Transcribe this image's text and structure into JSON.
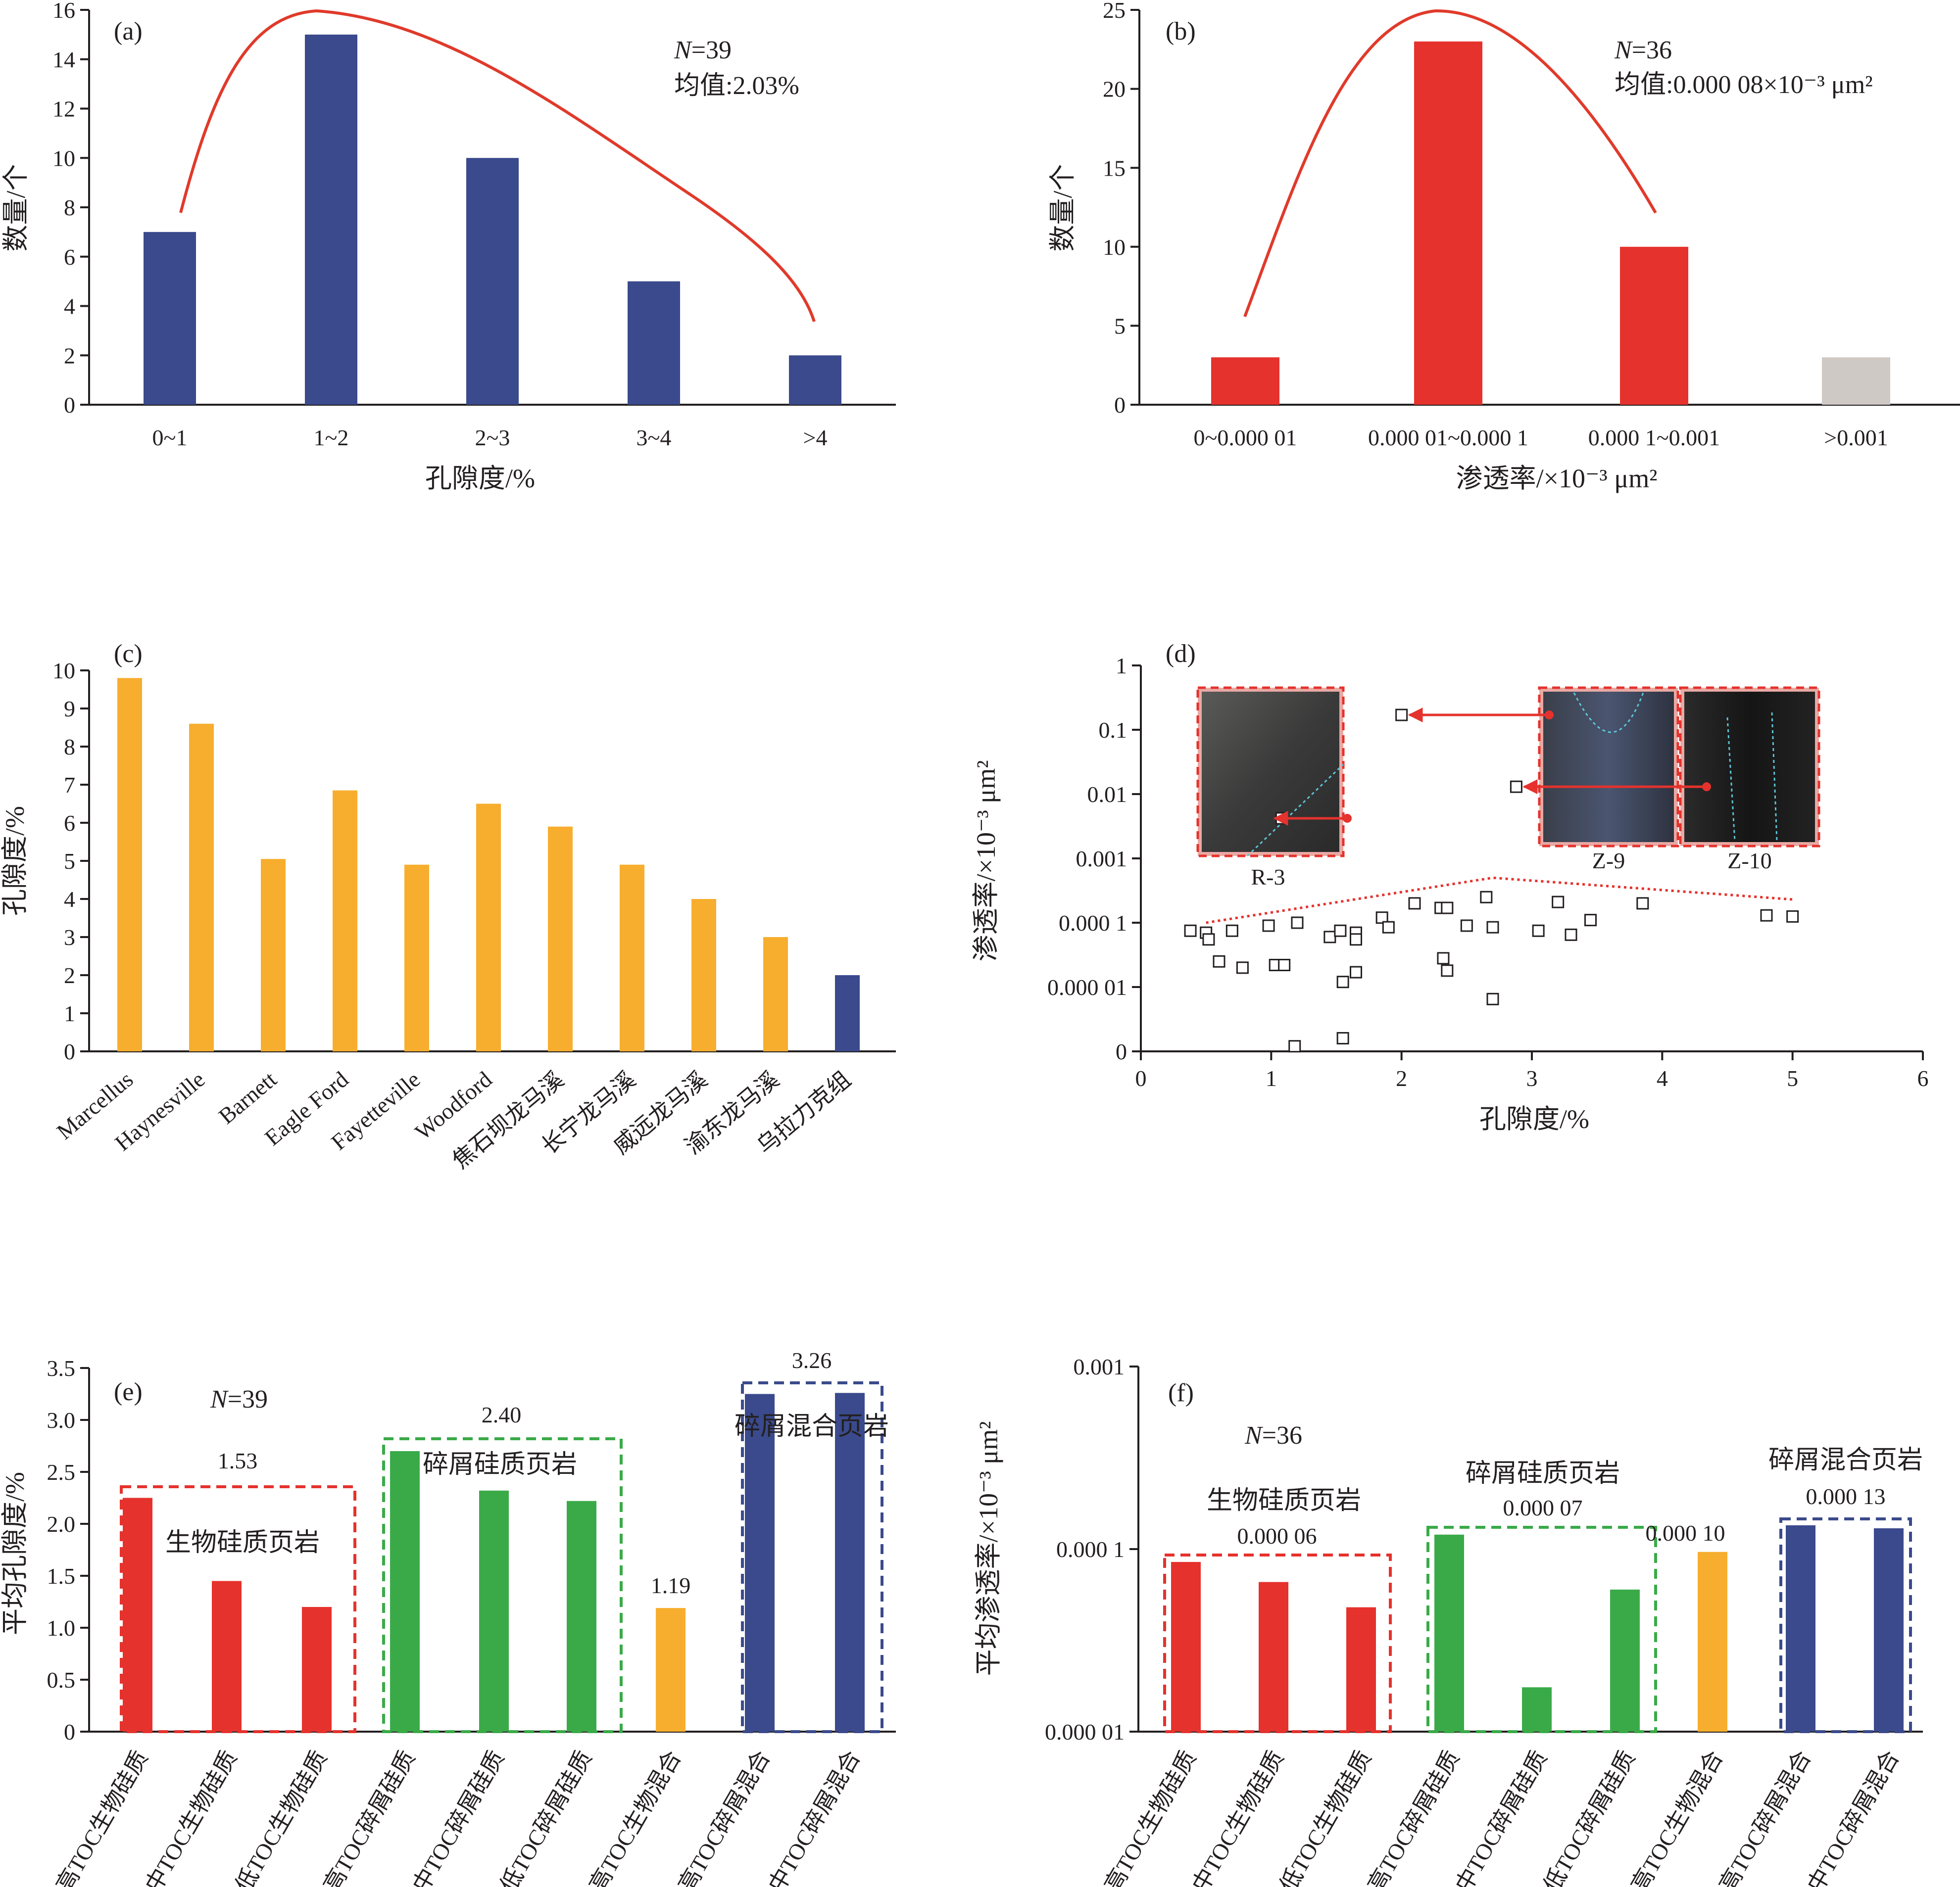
{
  "colors": {
    "navy": "#3a4a8c",
    "red": "#e5322d",
    "green": "#3aaa48",
    "orange": "#f7ae2e",
    "grey": "#cfc9c6",
    "curve": "#e03a2b",
    "ink": "#231f20"
  },
  "chart_data": [
    {
      "panel": "(a)",
      "type": "bar",
      "categories": [
        "0~1",
        "1~2",
        "2~3",
        "3~4",
        ">4"
      ],
      "values": [
        7,
        15,
        10,
        5,
        2
      ],
      "bar_colors": [
        "#3a4a8c",
        "#3a4a8c",
        "#3a4a8c",
        "#3a4a8c",
        "#3a4a8c"
      ],
      "xlabel": "孔隙度/%",
      "ylabel": "数量/个",
      "ylim": [
        0,
        16
      ],
      "yticks": [
        "0",
        "2",
        "4",
        "6",
        "8",
        "10",
        "12",
        "14",
        "16"
      ],
      "annotations": [
        "N=39",
        "均值:2.03%"
      ],
      "curve": {
        "type": "smoothed-fit",
        "color": "#e03a2b"
      }
    },
    {
      "panel": "(b)",
      "type": "bar",
      "categories": [
        "0~0.000 01",
        "0.000 01~0.000 1",
        "0.000 1~0.001",
        ">0.001"
      ],
      "values": [
        3,
        23,
        10,
        3
      ],
      "bar_colors": [
        "#e5322d",
        "#e5322d",
        "#e5322d",
        "#cfc9c6"
      ],
      "xlabel": "渗透率/×10⁻³ μm²",
      "ylabel": "数量/个",
      "ylim": [
        0,
        25
      ],
      "yticks": [
        "0",
        "5",
        "10",
        "15",
        "20",
        "25"
      ],
      "annotations": [
        "N=36",
        "均值:0.000 08×10⁻³ μm²"
      ],
      "curve": {
        "type": "smoothed-fit",
        "color": "#e03a2b"
      }
    },
    {
      "panel": "(c)",
      "type": "bar",
      "categories": [
        "Marcellus",
        "Haynesville",
        "Barnett",
        "Eagle Ford",
        "Fayetteville",
        "Woodford",
        "焦石坝龙马溪",
        "长宁龙马溪",
        "威远龙马溪",
        "渝东龙马溪",
        "乌拉力克组"
      ],
      "values": [
        9.8,
        8.6,
        5.05,
        6.85,
        4.9,
        6.5,
        5.9,
        4.9,
        4.0,
        3.0,
        2.0
      ],
      "bar_colors": [
        "#f7ae2e",
        "#f7ae2e",
        "#f7ae2e",
        "#f7ae2e",
        "#f7ae2e",
        "#f7ae2e",
        "#f7ae2e",
        "#f7ae2e",
        "#f7ae2e",
        "#f7ae2e",
        "#3a4a8c"
      ],
      "ylabel": "孔隙度/%",
      "ylim": [
        0,
        10
      ],
      "yticks": [
        "0",
        "1",
        "2",
        "3",
        "4",
        "5",
        "6",
        "7",
        "8",
        "9",
        "10"
      ]
    },
    {
      "panel": "(d)",
      "type": "scatter",
      "xlabel": "孔隙度/%",
      "ylabel": "渗透率/×10⁻³ μm²",
      "xlim": [
        0,
        6
      ],
      "xticks": [
        "0",
        "1",
        "2",
        "3",
        "4",
        "5",
        "6"
      ],
      "y_scale": "log",
      "ylim_exponent": [
        -6,
        0
      ],
      "yticks": [
        "0",
        "0.000 01",
        "0.000 1",
        "0.001",
        "0.01",
        "0.1",
        "1"
      ],
      "points": [
        [
          0.38,
          7.5e-05
        ],
        [
          0.5,
          7e-05
        ],
        [
          0.52,
          5.5e-05
        ],
        [
          0.6,
          2.5e-05
        ],
        [
          0.7,
          7.5e-05
        ],
        [
          0.78,
          2e-05
        ],
        [
          0.98,
          9e-05
        ],
        [
          1.03,
          2.2e-05
        ],
        [
          1.1,
          2.2e-05
        ],
        [
          1.18,
          1.2e-06
        ],
        [
          1.2,
          0.0001
        ],
        [
          1.45,
          6e-05
        ],
        [
          1.53,
          7.5e-05
        ],
        [
          1.55,
          1.2e-05
        ],
        [
          1.55,
          1.6e-06
        ],
        [
          1.65,
          1.7e-05
        ],
        [
          1.65,
          7e-05
        ],
        [
          1.65,
          5.5e-05
        ],
        [
          1.85,
          0.00012
        ],
        [
          1.9,
          8.5e-05
        ],
        [
          2.1,
          0.0002
        ],
        [
          2.3,
          0.00017
        ],
        [
          2.32,
          2.8e-05
        ],
        [
          2.35,
          1.8e-05
        ],
        [
          2.35,
          0.00017
        ],
        [
          2.5,
          9e-05
        ],
        [
          2.65,
          0.00025
        ],
        [
          2.7,
          8.5e-05
        ],
        [
          2.7,
          6.5e-06
        ],
        [
          3.05,
          7.5e-05
        ],
        [
          3.2,
          0.00021
        ],
        [
          3.3,
          6.5e-05
        ],
        [
          3.45,
          0.00011
        ],
        [
          3.85,
          0.0002
        ],
        [
          4.8,
          0.00013
        ],
        [
          5.0,
          0.000125
        ],
        [
          1.08,
          0.0042
        ],
        [
          2.0,
          0.17
        ],
        [
          2.88,
          0.013
        ]
      ],
      "trend_line": {
        "style": "dotted",
        "color": "#e5322d",
        "points": [
          [
            0.5,
            0.0001
          ],
          [
            2.7,
            0.0005
          ],
          [
            5.0,
            0.00023
          ]
        ]
      },
      "insets": [
        "R-3",
        "Z-9",
        "Z-10"
      ]
    },
    {
      "panel": "(e)",
      "type": "bar",
      "categories": [
        "高TOC生物硅质",
        "中TOC生物硅质",
        "低TOC生物硅质",
        "高TOC碎屑硅质",
        "中TOC碎屑硅质",
        "低TOC碎屑硅质",
        "高TOC生物混合",
        "高TOC碎屑混合",
        "中TOC碎屑混合"
      ],
      "values": [
        2.25,
        1.45,
        1.2,
        2.7,
        2.32,
        2.22,
        1.19,
        3.25,
        3.26
      ],
      "bar_colors": [
        "#e5322d",
        "#e5322d",
        "#e5322d",
        "#3aaa48",
        "#3aaa48",
        "#3aaa48",
        "#f7ae2e",
        "#3a4a8c",
        "#3a4a8c"
      ],
      "ylabel": "平均孔隙度/%",
      "ylim": [
        0,
        3.5
      ],
      "yticks": [
        "0",
        "0.5",
        "1.0",
        "1.5",
        "2.0",
        "2.5",
        "3.0",
        "3.5"
      ],
      "annotations": [
        "N=39"
      ],
      "groups": [
        {
          "name": "生物硅质页岩",
          "mean": "1.53",
          "color": "#e5322d"
        },
        {
          "name": "碎屑硅质页岩",
          "mean": "2.40",
          "color": "#3aaa48"
        },
        {
          "name": "",
          "mean": "1.19",
          "color": "#f7ae2e"
        },
        {
          "name": "碎屑混合页岩",
          "mean": "3.26",
          "color": "#3a4a8c"
        }
      ]
    },
    {
      "panel": "(f)",
      "type": "bar",
      "categories": [
        "高TOC生物硅质",
        "中TOC生物硅质",
        "低TOC生物硅质",
        "高TOC碎屑硅质",
        "中TOC碎屑硅质",
        "低TOC碎屑硅质",
        "高TOC生物混合",
        "高TOC碎屑混合",
        "中TOC碎屑混合"
      ],
      "values": [
        8.5e-05,
        6.6e-05,
        4.8e-05,
        0.00012,
        1.75e-05,
        6e-05,
        9.65e-05,
        0.000135,
        0.00013
      ],
      "bar_colors": [
        "#e5322d",
        "#e5322d",
        "#e5322d",
        "#3aaa48",
        "#3aaa48",
        "#3aaa48",
        "#f7ae2e",
        "#3a4a8c",
        "#3a4a8c"
      ],
      "ylabel": "平均渗透率/×10⁻³ μm²",
      "y_scale": "log",
      "yticks": [
        "0.000 01",
        "0.000 1",
        "0.001"
      ],
      "annotations": [
        "N=36"
      ],
      "groups": [
        {
          "name": "生物硅质页岩",
          "mean": "0.000 06",
          "color": "#e5322d"
        },
        {
          "name": "碎屑硅质页岩",
          "mean": "0.000 07",
          "color": "#3aaa48"
        },
        {
          "name": "",
          "mean": "0.000 10",
          "color": "#f7ae2e"
        },
        {
          "name": "碎屑混合页岩",
          "mean": "0.000 13",
          "color": "#3a4a8c"
        }
      ]
    }
  ]
}
